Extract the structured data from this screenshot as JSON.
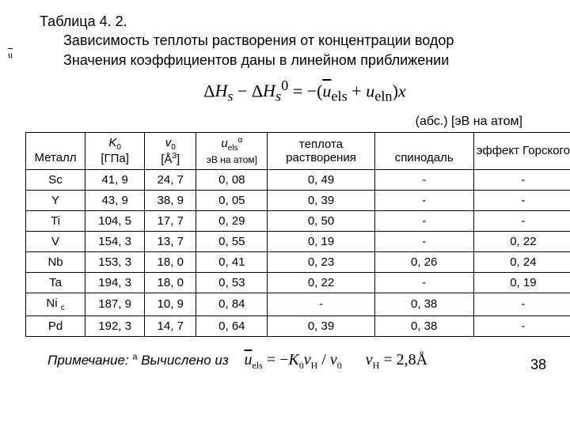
{
  "title": {
    "line1": "Таблица 4. 2.",
    "line2": "Зависимость теплоты растворения от концентрации водор",
    "line3": "Значения  коэффициентов даны в линейном приближении"
  },
  "abs_label": "(абс.) [эВ на атом]",
  "headers": {
    "metal": "Металл",
    "k0_label": "K",
    "k0_unit": "[ГПа]",
    "v0_label": "v",
    "v0_unit": "[Å",
    "u_label": "u",
    "u_unit": "эВ на атом]",
    "heat": "теплота растворения",
    "spin": "спинодаль",
    "gorsky": "эффект Горского"
  },
  "rows": [
    {
      "metal": "Sc",
      "k0": "41, 9",
      "v0": "24, 7",
      "u": "0, 08",
      "heat": "0, 49",
      "spin": "-",
      "gor": "-"
    },
    {
      "metal": "Y",
      "k0": "43, 9",
      "v0": "38, 9",
      "u": "0, 05",
      "heat": "0, 39",
      "spin": "-",
      "gor": "-"
    },
    {
      "metal": "Ti",
      "k0": "104, 5",
      "v0": "17, 7",
      "u": "0, 29",
      "heat": "0, 50",
      "spin": "-",
      "gor": "-"
    },
    {
      "metal": "V",
      "k0": "154, 3",
      "v0": "13, 7",
      "u": "0, 55",
      "heat": "0, 19",
      "spin": "-",
      "gor": "0, 22"
    },
    {
      "metal": "Nb",
      "k0": "153, 3",
      "v0": "18, 0",
      "u": "0, 41",
      "heat": "0, 23",
      "spin": "0, 26",
      "gor": "0, 24"
    },
    {
      "metal": "Ta",
      "k0": "194, 3",
      "v0": "18, 0",
      "u": "0, 53",
      "heat": "0, 22",
      "spin": "-",
      "gor": "0, 19"
    },
    {
      "metal": "Ni ",
      "k0": "187, 9",
      "v0": "10, 9",
      "u": "0, 84",
      "heat": "-",
      "spin": "0, 38",
      "gor": "-"
    },
    {
      "metal": "Pd",
      "k0": "192, 3",
      "v0": "14, 7",
      "u": "0, 64",
      "heat": "0, 39",
      "spin": "0, 38",
      "gor": "-"
    }
  ],
  "note": {
    "prefix": "Примечание: ",
    "sup": "а",
    "text": " Вычислено из"
  },
  "page_number": "38",
  "style": {
    "text_color": "#000000",
    "background": "#ffffff",
    "border_color": "#000000",
    "title_fontsize": 18,
    "table_fontsize": 15,
    "formula_fontsize": 22,
    "note_fontsize": 17
  }
}
